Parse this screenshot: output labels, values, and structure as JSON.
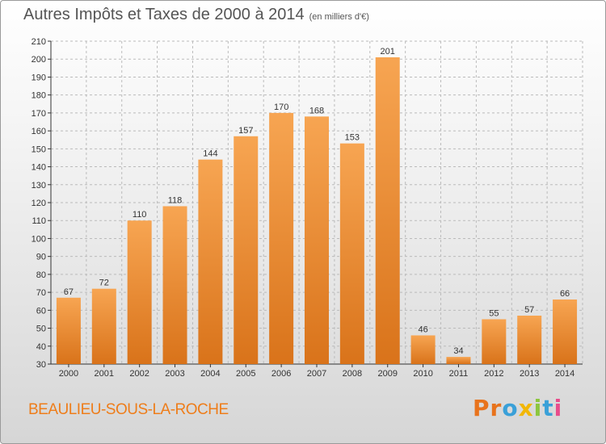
{
  "header": {
    "title": "Autres Impôts et Taxes de 2000 à 2014",
    "subtitle": "(en milliers d'€)"
  },
  "footer": {
    "commune": "BEAULIEU-SOUS-LA-ROCHE",
    "brand": [
      "P",
      "r",
      "o",
      "x",
      "i",
      "t",
      "i"
    ],
    "brand_colors": [
      "#e8731c",
      "#e8731c",
      "#3aa0d8",
      "#f2b705",
      "#8cc63f",
      "#3aa0d8",
      "#e84c8b"
    ]
  },
  "colors": {
    "bar_top": "#f7a552",
    "bar_bottom": "#d9731a",
    "grid": "#bbbbbb",
    "axis": "#333333"
  },
  "chart_data": {
    "type": "bar",
    "title": "Autres Impôts et Taxes de 2000 à 2014",
    "subtitle": "(en milliers d'€)",
    "xlabel": "",
    "ylabel": "",
    "categories": [
      "2000",
      "2001",
      "2002",
      "2003",
      "2004",
      "2005",
      "2006",
      "2007",
      "2008",
      "2009",
      "2010",
      "2011",
      "2012",
      "2013",
      "2014"
    ],
    "values": [
      67,
      72,
      110,
      118,
      144,
      157,
      170,
      168,
      153,
      201,
      46,
      34,
      55,
      57,
      66
    ],
    "ylim": [
      30,
      210
    ],
    "yticks": [
      30,
      40,
      50,
      60,
      70,
      80,
      90,
      100,
      110,
      120,
      130,
      140,
      150,
      160,
      170,
      180,
      190,
      200,
      210
    ],
    "grid": true,
    "legend": "none"
  }
}
